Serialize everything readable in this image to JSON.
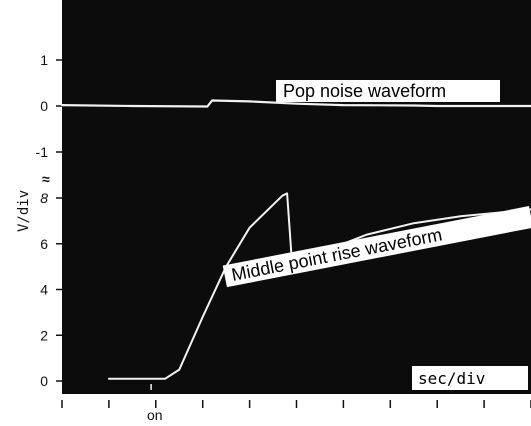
{
  "chart_data": {
    "type": "line",
    "title": "",
    "xlabel": "sec/div",
    "ylabel": "V/div",
    "x_marker": "on",
    "break_symbol": "≈",
    "upper_y_ticks": [
      "1",
      "0",
      "-1"
    ],
    "lower_y_ticks": [
      "8",
      "6",
      "4",
      "2",
      "0"
    ],
    "series": [
      {
        "name": "Pop noise waveform",
        "values": [
          [
            0,
            0.02
          ],
          [
            1.5,
            0.0
          ],
          [
            3.1,
            -0.01
          ],
          [
            3.2,
            0.12
          ],
          [
            4.0,
            0.1
          ],
          [
            5.0,
            0.05
          ],
          [
            6.0,
            0.02
          ],
          [
            7.5,
            0.01
          ],
          [
            8.0,
            0.0
          ],
          [
            10,
            0.0
          ]
        ]
      },
      {
        "name": "Middle point rise waveform",
        "values": [
          [
            1.0,
            0.1
          ],
          [
            2.2,
            0.1
          ],
          [
            2.5,
            0.5
          ],
          [
            3.0,
            2.8
          ],
          [
            3.5,
            5.0
          ],
          [
            4.0,
            6.7
          ],
          [
            4.7,
            8.1
          ],
          [
            4.8,
            8.2
          ],
          [
            4.9,
            5.3
          ],
          [
            5.0,
            5.0
          ],
          [
            5.5,
            5.6
          ],
          [
            6.5,
            6.4
          ],
          [
            7.5,
            6.9
          ],
          [
            8.5,
            7.2
          ],
          [
            9.5,
            7.4
          ],
          [
            10,
            7.5
          ]
        ]
      }
    ],
    "x_range": [
      0,
      10
    ],
    "upper_ylim": [
      -1.5,
      1.5
    ],
    "lower_ylim": [
      0,
      9
    ],
    "grid": false,
    "legend": "inline labels"
  },
  "colors": {
    "panel": "#0c0c0c",
    "trace": "#f2f2f2",
    "label_bg": "#ffffff",
    "label_text": "#000000"
  }
}
